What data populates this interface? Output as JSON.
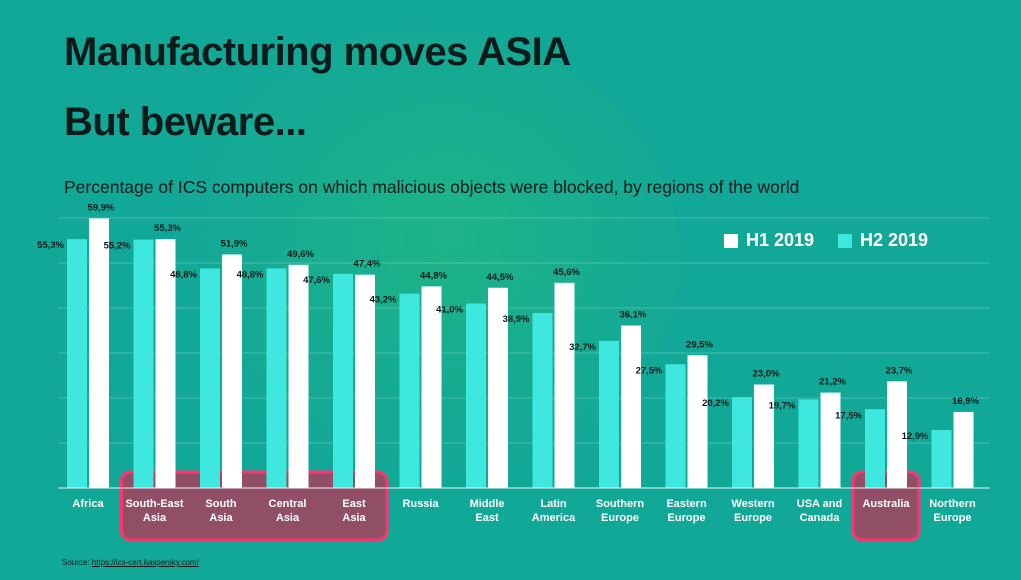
{
  "slide": {
    "title_line1": "Manufacturing moves ASIA",
    "title_line2": "But beware...",
    "source_label": "Source:",
    "source_link": "https://ics-cert.kaspersky.com/"
  },
  "colors": {
    "background": "#12a898",
    "h1": "#ffffff",
    "h2": "#3ee8df",
    "highlight_fill": "#a8405e",
    "highlight_border": "#ff3370"
  },
  "highlighted_categories": [
    "South-East Asia",
    "South Asia",
    "Central Asia",
    "East Asia",
    "Australia"
  ],
  "chart_data": {
    "type": "bar",
    "title": "Percentage of ICS computers on which malicious objects were blocked, by regions of the world",
    "xlabel": "",
    "ylabel": "",
    "grid": true,
    "legend_position": "top-right",
    "categories": [
      "Africa",
      "South-East Asia",
      "South Asia",
      "Central Asia",
      "East Asia",
      "Russia",
      "Middle East",
      "Latin America",
      "Southern Europe",
      "Eastern Europe",
      "Western Europe",
      "USA and Canada",
      "Australia",
      "Northern Europe"
    ],
    "category_lines": [
      [
        "Africa"
      ],
      [
        "South-East",
        "Asia"
      ],
      [
        "South",
        "Asia"
      ],
      [
        "Central",
        "Asia"
      ],
      [
        "East",
        "Asia"
      ],
      [
        "Russia"
      ],
      [
        "Middle",
        "East"
      ],
      [
        "Latin",
        "America"
      ],
      [
        "Southern",
        "Europe"
      ],
      [
        "Eastern",
        "Europe"
      ],
      [
        "Western",
        "Europe"
      ],
      [
        "USA and",
        "Canada"
      ],
      [
        "Australia"
      ],
      [
        "Northern",
        "Europe"
      ]
    ],
    "series": [
      {
        "name": "H1 2019",
        "values": [
          55.3,
          55.2,
          48.8,
          48.8,
          47.6,
          43.2,
          41.0,
          38.9,
          32.7,
          27.5,
          20.2,
          19.7,
          17.5,
          12.9
        ],
        "labels": [
          "55,3%",
          "55,2%",
          "48,8%",
          "48,8%",
          "47,6%",
          "43,2%",
          "41,0%",
          "38,9%",
          "32,7%",
          "27,5%",
          "20,2%",
          "19,7%",
          "17,5%",
          "12,9%"
        ]
      },
      {
        "name": "H2 2019",
        "values": [
          59.9,
          55.3,
          51.9,
          49.6,
          47.4,
          44.8,
          44.5,
          45.6,
          36.1,
          29.5,
          23.0,
          21.2,
          23.7,
          16.9
        ],
        "labels": [
          "59,9%",
          "55,3%",
          "51,9%",
          "49,6%",
          "47,4%",
          "44,8%",
          "44,5%",
          "45,6%",
          "36,1%",
          "29,5%",
          "23,0%",
          "21,2%",
          "23,7%",
          "16,9%"
        ]
      }
    ],
    "ylim": [
      0,
      60
    ]
  }
}
